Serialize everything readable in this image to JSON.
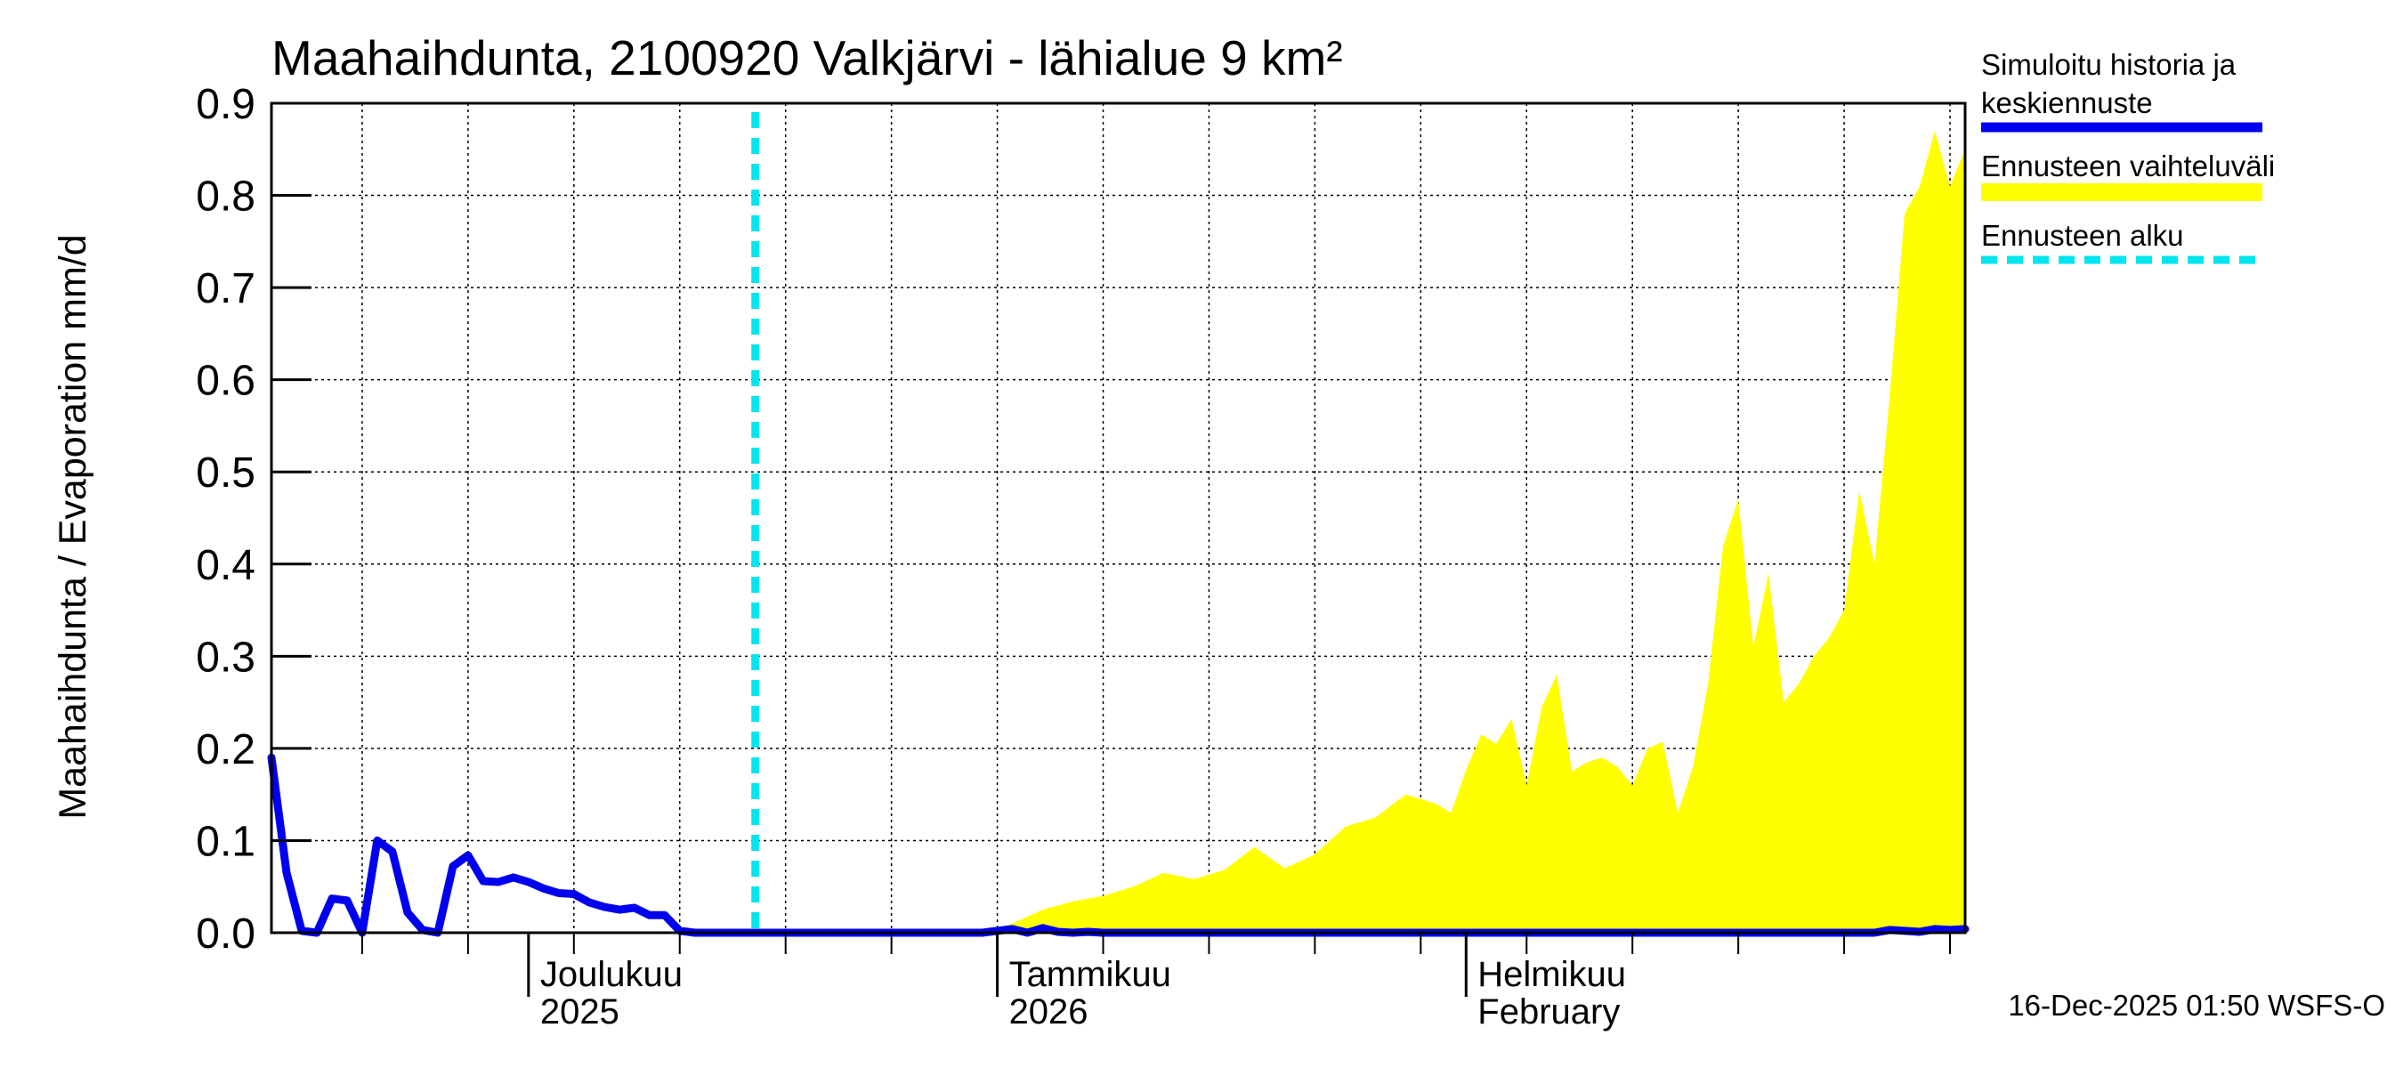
{
  "chart_data": {
    "type": "area",
    "title": "Maahaihdunta, 2100920 Valkjärvi - lähialue 9 km²",
    "ylabel": "Maahaihdunta / Evaporation   mm/d",
    "ylim": [
      0,
      0.9
    ],
    "yticks": [
      "0.0",
      "0.1",
      "0.2",
      "0.3",
      "0.4",
      "0.5",
      "0.6",
      "0.7",
      "0.8",
      "0.9"
    ],
    "xlim": [
      "2025-11-14",
      "2026-03-06"
    ],
    "month_labels": [
      {
        "date": "2025-12-01",
        "line1": "Joulukuu",
        "line2": "2025"
      },
      {
        "date": "2026-01-01",
        "line1": "Tammikuu",
        "line2": "2026"
      },
      {
        "date": "2026-02-01",
        "line1": "Helmikuu",
        "line2": "February"
      }
    ],
    "forecast_start": "2025-12-16",
    "legend": [
      {
        "label": "Simuloitu historia ja",
        "label2": "keskiennuste",
        "color": "#0000ee",
        "style": "solid"
      },
      {
        "label": "Ennusteen vaihteluväli",
        "color": "#ffff00",
        "style": "band"
      },
      {
        "label": "Ennusteen alku",
        "color": "#00e5ee",
        "style": "dashed"
      }
    ],
    "series": [
      {
        "name": "Simuloitu historia ja keskiennuste",
        "x": [
          "2025-11-14",
          "2025-11-15",
          "2025-11-16",
          "2025-11-17",
          "2025-11-18",
          "2025-11-19",
          "2025-11-20",
          "2025-11-21",
          "2025-11-22",
          "2025-11-23",
          "2025-11-24",
          "2025-11-25",
          "2025-11-26",
          "2025-11-27",
          "2025-11-28",
          "2025-11-29",
          "2025-11-30",
          "2025-12-01",
          "2025-12-02",
          "2025-12-03",
          "2025-12-04",
          "2025-12-05",
          "2025-12-06",
          "2025-12-07",
          "2025-12-08",
          "2025-12-09",
          "2025-12-10",
          "2025-12-11",
          "2025-12-12",
          "2025-12-13",
          "2025-12-14",
          "2025-12-15",
          "2025-12-16",
          "2025-12-31",
          "2026-01-01",
          "2026-01-02",
          "2026-01-03",
          "2026-01-04",
          "2026-01-05",
          "2026-01-06",
          "2026-01-07",
          "2026-01-08",
          "2026-02-28",
          "2026-03-01",
          "2026-03-02",
          "2026-03-03",
          "2026-03-04",
          "2026-03-05",
          "2026-03-06"
        ],
        "values": [
          0.19,
          0.065,
          0.002,
          0.0,
          0.037,
          0.035,
          0.0,
          0.1,
          0.088,
          0.022,
          0.003,
          0.0,
          0.072,
          0.084,
          0.056,
          0.055,
          0.06,
          0.055,
          0.048,
          0.043,
          0.042,
          0.033,
          0.028,
          0.025,
          0.027,
          0.019,
          0.019,
          0.002,
          0.0,
          0.0,
          0.0,
          0.0,
          0.0,
          0.0,
          0.002,
          0.004,
          0.0,
          0.005,
          0.001,
          0.0,
          0.001,
          0.0,
          0.0,
          0.003,
          0.002,
          0.001,
          0.004,
          0.003,
          0.004
        ]
      },
      {
        "name": "Ennusteen vaihteluväli",
        "x": [
          "2025-12-31",
          "2026-01-02",
          "2026-01-04",
          "2026-01-06",
          "2026-01-08",
          "2026-01-10",
          "2026-01-12",
          "2026-01-14",
          "2026-01-16",
          "2026-01-18",
          "2026-01-20",
          "2026-01-22",
          "2026-01-24",
          "2026-01-26",
          "2026-01-28",
          "2026-01-30",
          "2026-01-31",
          "2026-02-01",
          "2026-02-02",
          "2026-02-03",
          "2026-02-04",
          "2026-02-05",
          "2026-02-06",
          "2026-02-07",
          "2026-02-08",
          "2026-02-09",
          "2026-02-10",
          "2026-02-11",
          "2026-02-12",
          "2026-02-13",
          "2026-02-14",
          "2026-02-15",
          "2026-02-16",
          "2026-02-17",
          "2026-02-18",
          "2026-02-19",
          "2026-02-20",
          "2026-02-21",
          "2026-02-22",
          "2026-02-23",
          "2026-02-24",
          "2026-02-25",
          "2026-02-26",
          "2026-02-27",
          "2026-02-28",
          "2026-03-01",
          "2026-03-02",
          "2026-03-03",
          "2026-03-04",
          "2026-03-05",
          "2026-03-06"
        ],
        "upper": [
          0.0,
          0.01,
          0.025,
          0.034,
          0.04,
          0.05,
          0.065,
          0.058,
          0.068,
          0.093,
          0.07,
          0.085,
          0.115,
          0.125,
          0.15,
          0.14,
          0.13,
          0.177,
          0.215,
          0.205,
          0.232,
          0.16,
          0.245,
          0.28,
          0.175,
          0.185,
          0.19,
          0.18,
          0.16,
          0.2,
          0.207,
          0.13,
          0.18,
          0.27,
          0.42,
          0.47,
          0.31,
          0.39,
          0.25,
          0.27,
          0.3,
          0.32,
          0.35,
          0.48,
          0.4,
          0.58,
          0.78,
          0.81,
          0.87,
          0.81,
          0.85
        ]
      }
    ]
  },
  "footer": {
    "timestamp": "16-Dec-2025 01:50 WSFS-O"
  }
}
